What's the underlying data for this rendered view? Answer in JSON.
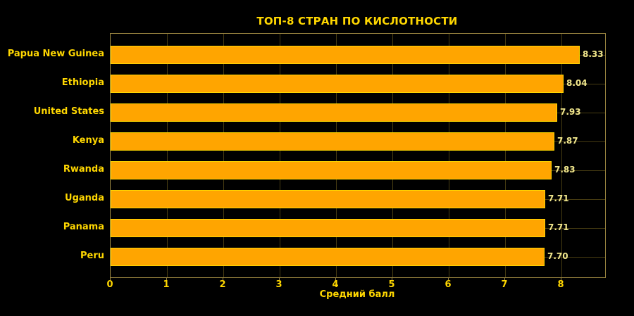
{
  "chart_data": {
    "type": "bar",
    "orientation": "horizontal",
    "title": "ТОП-8 СТРАН ПО КИСЛОТНОСТИ",
    "xlabel": "Средний балл",
    "ylabel": "",
    "categories": [
      "Papua New Guinea",
      "Ethiopia",
      "United States",
      "Kenya",
      "Rwanda",
      "Uganda",
      "Panama",
      "Peru"
    ],
    "values": [
      8.33,
      8.04,
      7.93,
      7.87,
      7.83,
      7.71,
      7.71,
      7.7
    ],
    "value_labels": [
      "8.33",
      "8.04",
      "7.93",
      "7.87",
      "7.83",
      "7.71",
      "7.71",
      "7.70"
    ],
    "x_ticks": [
      0,
      1,
      2,
      3,
      4,
      5,
      6,
      7,
      8
    ],
    "xlim": [
      0,
      8.78
    ],
    "grid": true,
    "legend": "none",
    "colors": {
      "background": "#000000",
      "bar_fill": "#FFA500",
      "bar_edge": "#FFD700",
      "title": "#FFD700",
      "category_label": "#FFD700",
      "tick_label": "#FFD700",
      "value_label": "#F0E68C",
      "axis_spine": "#9A8540",
      "gridline": "#473C12"
    }
  }
}
